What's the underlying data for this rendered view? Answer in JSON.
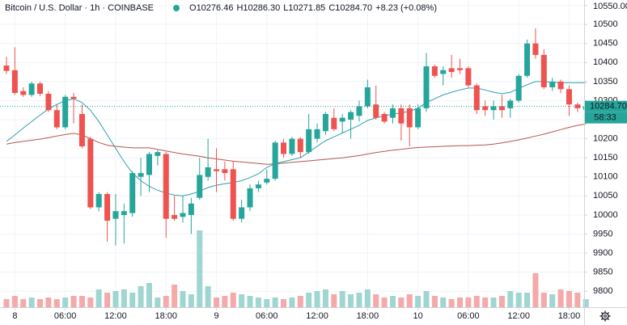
{
  "chart_data": {
    "type": "candlestick",
    "title": "Bitcoin / U.S. Dollar · 1h · COINBASE",
    "ohlc": [
      [
        "O",
        "10276.46"
      ],
      [
        "H",
        "10286.30"
      ],
      [
        "L",
        "10271.85"
      ],
      [
        "C",
        "10284.70"
      ]
    ],
    "change": "+8.23 (+0.08%)",
    "up_color": "#26a69a",
    "down_color": "#ef5350",
    "volume_up_color": "#9fd6d1",
    "volume_down_color": "#f5a9a8",
    "open": [
      10392,
      10380,
      10325,
      10315,
      10345,
      10318,
      10275,
      10230,
      10310,
      10265,
      10200,
      10020,
      10055,
      9990,
      10000,
      10005,
      10100,
      10105,
      10155,
      10160,
      10000,
      9995,
      10000,
      10045,
      10100,
      10120,
      10120,
      10120,
      9990,
      10020,
      10070,
      10085,
      10095,
      10190,
      10160,
      10200,
      10165,
      10200,
      10220,
      10255,
      10245,
      10250,
      10260,
      10285,
      10290,
      10265,
      10255,
      10280,
      10280,
      10230,
      10280,
      10390,
      10370,
      10385,
      10385,
      10385,
      10340,
      10285,
      10275,
      10285,
      10280,
      10300,
      10365,
      10450,
      10420,
      10335,
      10350,
      10330,
      10290,
      10276.46
    ],
    "high": [
      10415,
      10440,
      10335,
      10350,
      10350,
      10325,
      10290,
      10315,
      10320,
      10290,
      10205,
      10060,
      10060,
      10055,
      10030,
      10115,
      10150,
      10165,
      10170,
      10165,
      10050,
      10050,
      10045,
      10150,
      10200,
      10175,
      10140,
      10140,
      10040,
      10080,
      10090,
      10120,
      10195,
      10200,
      10205,
      10205,
      10265,
      10240,
      10270,
      10280,
      10265,
      10275,
      10300,
      10355,
      10340,
      10270,
      10290,
      10290,
      10290,
      10290,
      10425,
      10395,
      10390,
      10420,
      10410,
      10390,
      10345,
      10300,
      10300,
      10315,
      10305,
      10370,
      10460,
      10490,
      10435,
      10360,
      10355,
      10340,
      10295,
      10286.3
    ],
    "low": [
      10370,
      10315,
      10310,
      10310,
      10312,
      10270,
      10225,
      10225,
      10240,
      10175,
      10015,
      10010,
      9930,
      9920,
      9925,
      9995,
      10050,
      10060,
      10130,
      9940,
      9985,
      9980,
      9950,
      10040,
      10090,
      10060,
      10090,
      9985,
      9980,
      10010,
      10060,
      10080,
      10090,
      10150,
      10155,
      10150,
      10160,
      10190,
      10210,
      10220,
      10215,
      10200,
      10245,
      10280,
      10250,
      10240,
      10240,
      10195,
      10180,
      10225,
      10270,
      10360,
      10340,
      10360,
      10370,
      10335,
      10265,
      10260,
      10250,
      10255,
      10255,
      10295,
      10360,
      10410,
      10330,
      10325,
      10320,
      10260,
      10270,
      10271.85
    ],
    "close": [
      10378,
      10320,
      10315,
      10345,
      10318,
      10275,
      10230,
      10310,
      10305,
      10180,
      10020,
      10055,
      9985,
      10010,
      10010,
      10110,
      10110,
      10160,
      10165,
      9990,
      9990,
      10005,
      10030,
      10105,
      10125,
      10115,
      10110,
      9990,
      10020,
      10070,
      10080,
      10095,
      10190,
      10160,
      10200,
      10165,
      10225,
      10225,
      10265,
      10225,
      10255,
      10270,
      10285,
      10335,
      10255,
      10245,
      10280,
      10240,
      10230,
      10280,
      10390,
      10365,
      10380,
      10375,
      10380,
      10340,
      10275,
      10275,
      10285,
      10275,
      10300,
      10365,
      10450,
      10420,
      10335,
      10350,
      10330,
      10290,
      10280,
      10284.7
    ],
    "volume": [
      10,
      14,
      10,
      12,
      10,
      12,
      10,
      12,
      14,
      14,
      12,
      22,
      18,
      20,
      22,
      18,
      26,
      30,
      12,
      14,
      28,
      20,
      16,
      95,
      26,
      12,
      14,
      18,
      16,
      14,
      12,
      10,
      12,
      10,
      12,
      14,
      18,
      20,
      22,
      16,
      20,
      16,
      18,
      22,
      16,
      12,
      14,
      12,
      16,
      14,
      20,
      14,
      12,
      10,
      12,
      12,
      14,
      12,
      12,
      14,
      20,
      18,
      18,
      42,
      18,
      16,
      22,
      20,
      18,
      10
    ],
    "lines": [
      {
        "color": "#2a9fb0",
        "values": [
          10193,
          10210,
          10228,
          10245,
          10262,
          10278,
          10290,
          10300,
          10305,
          10295,
          10275,
          10245,
          10210,
          10175,
          10140,
          10110,
          10090,
          10075,
          10065,
          10058,
          10052,
          10050,
          10055,
          10062,
          10072,
          10078,
          10082,
          10085,
          10090,
          10098,
          10108,
          10125,
          10135,
          10140,
          10145,
          10150,
          10165,
          10180,
          10195,
          10205,
          10215,
          10225,
          10235,
          10248,
          10255,
          10260,
          10265,
          10268,
          10272,
          10280,
          10295,
          10305,
          10315,
          10322,
          10328,
          10333,
          10333,
          10328,
          10322,
          10318,
          10322,
          10332,
          10342,
          10350,
          10350,
          10348,
          10347,
          10347,
          10347,
          10347
        ]
      },
      {
        "color": "#b5564c",
        "values": [
          10186,
          10190,
          10193,
          10196,
          10199,
          10203,
          10207,
          10211,
          10214,
          10210,
          10200,
          10190,
          10183,
          10180,
          10178,
          10176,
          10176,
          10176,
          10172,
          10168,
          10164,
          10160,
          10157,
          10154,
          10150,
          10147,
          10144,
          10141,
          10139,
          10137,
          10135,
          10133,
          10134,
          10136,
          10138,
          10140,
          10142,
          10144,
          10146,
          10148,
          10150,
          10153,
          10156,
          10160,
          10164,
          10167,
          10170,
          10172,
          10175,
          10177,
          10178,
          10179,
          10180,
          10181,
          10182,
          10182,
          10183,
          10184,
          10186,
          10189,
          10193,
          10197,
          10202,
          10207,
          10212,
          10218,
          10224,
          10230,
          10235,
          10239
        ]
      }
    ],
    "last_price": {
      "value": 10284.7,
      "label": "10284.70"
    },
    "countdown": "58:33",
    "ylim": [
      9758,
      10564
    ],
    "yticks": [
      9800,
      9850,
      9900,
      9950,
      10000,
      10050,
      10100,
      10150,
      10200,
      10250,
      10300,
      10350,
      10400,
      10450,
      10500,
      {
        "value": 10550,
        "label": "10550.00"
      }
    ],
    "xticks": [
      {
        "value": 1,
        "label": "8"
      },
      {
        "value": 7,
        "label": "06:00"
      },
      {
        "value": 13,
        "label": "12:00"
      },
      {
        "value": 19,
        "label": "18:00"
      },
      {
        "value": 25,
        "label": "9"
      },
      {
        "value": 31,
        "label": "06:00"
      },
      {
        "value": 37,
        "label": "12:00"
      },
      {
        "value": 43,
        "label": "18:00"
      },
      {
        "value": 49,
        "label": "10"
      },
      {
        "value": 55,
        "label": "06:00"
      },
      {
        "value": 61,
        "label": "12:00"
      },
      {
        "value": 67,
        "label": "18:00"
      }
    ],
    "grid": true
  }
}
